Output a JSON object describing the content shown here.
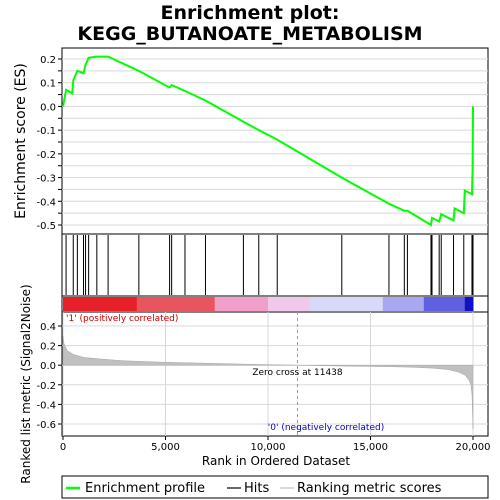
{
  "chart_data": {
    "type": "line",
    "title_lines": [
      "Enrichment plot:",
      "KEGG_BUTANOATE_METABOLISM"
    ],
    "es_panel": {
      "ylabel": "Enrichment score (ES)",
      "xlim": [
        0,
        20000
      ],
      "ylim": [
        -0.5,
        0.25
      ],
      "yticks": [
        0.2,
        0.15,
        0.1,
        0.05,
        0.0,
        -0.05,
        -0.1,
        -0.15,
        -0.2,
        -0.25,
        -0.3,
        -0.35,
        -0.4,
        -0.45,
        -0.5
      ],
      "ytick_labels": [
        "0.2",
        "0.1",
        "0.0",
        "-0.1",
        "-0.2",
        "-0.3",
        "-0.4",
        "-0.5"
      ],
      "series": [
        {
          "name": "Enrichment profile",
          "color": "#00ff00",
          "x": [
            0,
            150,
            450,
            500,
            700,
            1000,
            1100,
            1250,
            1650,
            2200,
            3700,
            5200,
            5300,
            5950,
            6950,
            8800,
            9550,
            10450,
            13600,
            15900,
            16650,
            16800,
            17950,
            18000,
            18350,
            18450,
            19050,
            19100,
            19550,
            19600,
            19950,
            19980,
            20000
          ],
          "y": [
            0.0,
            0.07,
            0.055,
            0.11,
            0.15,
            0.14,
            0.175,
            0.205,
            0.21,
            0.21,
            0.15,
            0.08,
            0.09,
            0.065,
            0.025,
            -0.065,
            -0.1,
            -0.14,
            -0.3,
            -0.41,
            -0.44,
            -0.44,
            -0.5,
            -0.47,
            -0.485,
            -0.455,
            -0.48,
            -0.43,
            -0.45,
            -0.355,
            -0.37,
            -0.26,
            0.0
          ]
        }
      ]
    },
    "hits_panel": {
      "hit_positions": [
        150,
        500,
        700,
        1000,
        1100,
        1250,
        1650,
        2200,
        3700,
        5200,
        5300,
        5950,
        6950,
        8800,
        9550,
        10450,
        13600,
        15900,
        16650,
        16800,
        17950,
        18000,
        18350,
        18450,
        19050,
        19550,
        19950,
        20000
      ]
    },
    "ranking_panel": {
      "ylabel": "Ranked list metric (Signal2Noise)",
      "xlabel": "Rank in Ordered Dataset",
      "xlim": [
        0,
        20000
      ],
      "ylim": [
        -0.7,
        0.55
      ],
      "yticks": [
        0.4,
        0.2,
        0.0,
        -0.2,
        -0.4,
        -0.6
      ],
      "ytick_labels": [
        "0.4",
        "0.2",
        "0.0",
        "-0.2",
        "-0.4",
        "-0.6"
      ],
      "xticks": [
        0,
        5000,
        10000,
        15000,
        20000
      ],
      "xtick_labels": [
        "0",
        "5,000",
        "10,000",
        "15,000",
        "20,000"
      ],
      "zero_cross": 11438,
      "zero_cross_label": "Zero cross at 11438",
      "pos_label": "'1' (positively correlated)",
      "neg_label": "'0' (negatively correlated)",
      "metric_x": [
        0,
        50,
        200,
        500,
        1000,
        2000,
        3000,
        5000,
        7000,
        9000,
        11438,
        14000,
        16000,
        17000,
        18000,
        18800,
        19300,
        19600,
        19800,
        19900,
        19950,
        20000
      ],
      "metric_y": [
        0.3,
        0.22,
        0.15,
        0.11,
        0.08,
        0.06,
        0.045,
        0.03,
        0.02,
        0.01,
        0.0,
        -0.01,
        -0.015,
        -0.02,
        -0.03,
        -0.045,
        -0.07,
        -0.1,
        -0.15,
        -0.2,
        -0.3,
        -0.65
      ]
    },
    "legend": {
      "items": [
        {
          "label": "Enrichment profile",
          "color": "#00ff00"
        },
        {
          "label": "Hits",
          "color": "#000000"
        },
        {
          "label": "Ranking metric scores",
          "color": "#c0c0c0"
        }
      ]
    }
  }
}
